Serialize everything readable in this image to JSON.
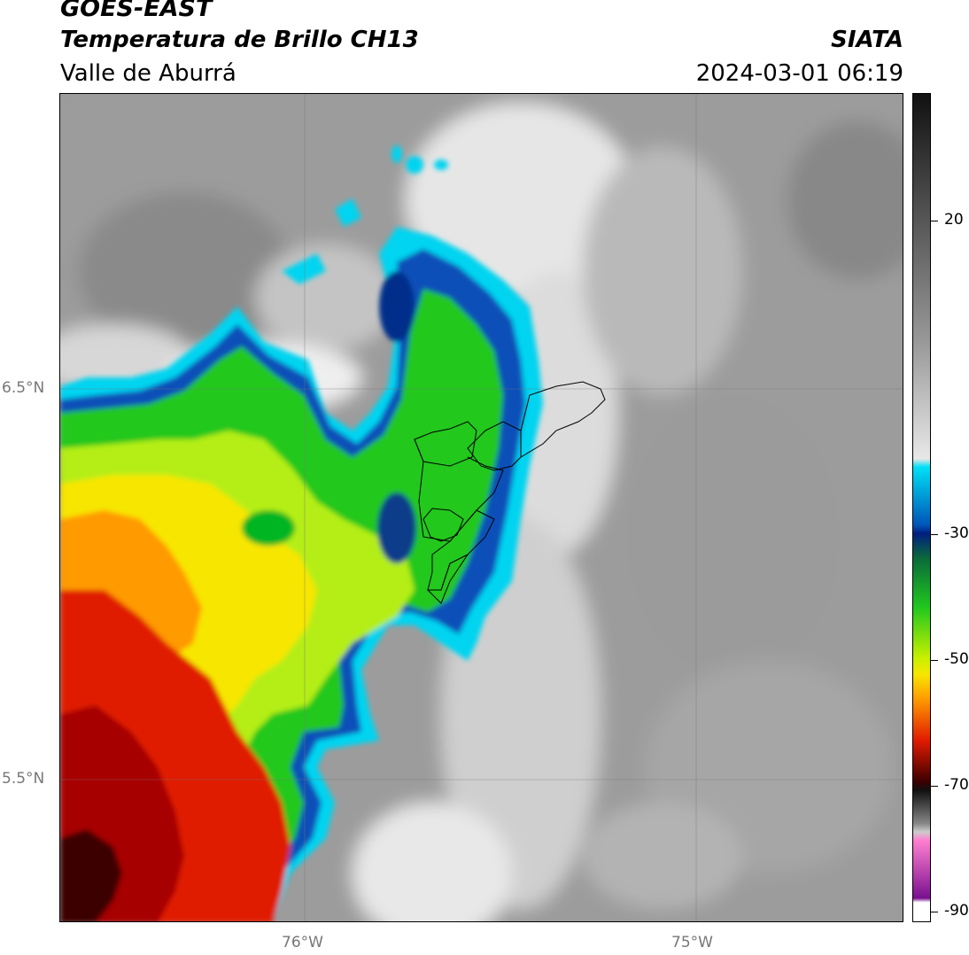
{
  "header": {
    "satellite": "GOES-EAST",
    "product": "Temperatura de Brillo CH13",
    "region": "Valle de Aburrá",
    "agency": "SIATA",
    "timestamp": "2024-03-01 06:19"
  },
  "map": {
    "lat_labels": [
      "6.5°N",
      "5.5°N"
    ],
    "lon_labels": [
      "76°W",
      "75°W"
    ]
  },
  "colorbar": {
    "tick_labels": [
      "20",
      "-30",
      "-50",
      "-70",
      "-90"
    ],
    "unit": ""
  },
  "colors": {
    "cold_cloud_cyan": "#00d4f0",
    "blue": "#003a9a",
    "green": "#22c81e",
    "yellow": "#f7e600",
    "orange": "#ff9a00",
    "red": "#e01a00",
    "dark_red": "#5a0000",
    "gray_background": "#9a9a9a"
  }
}
